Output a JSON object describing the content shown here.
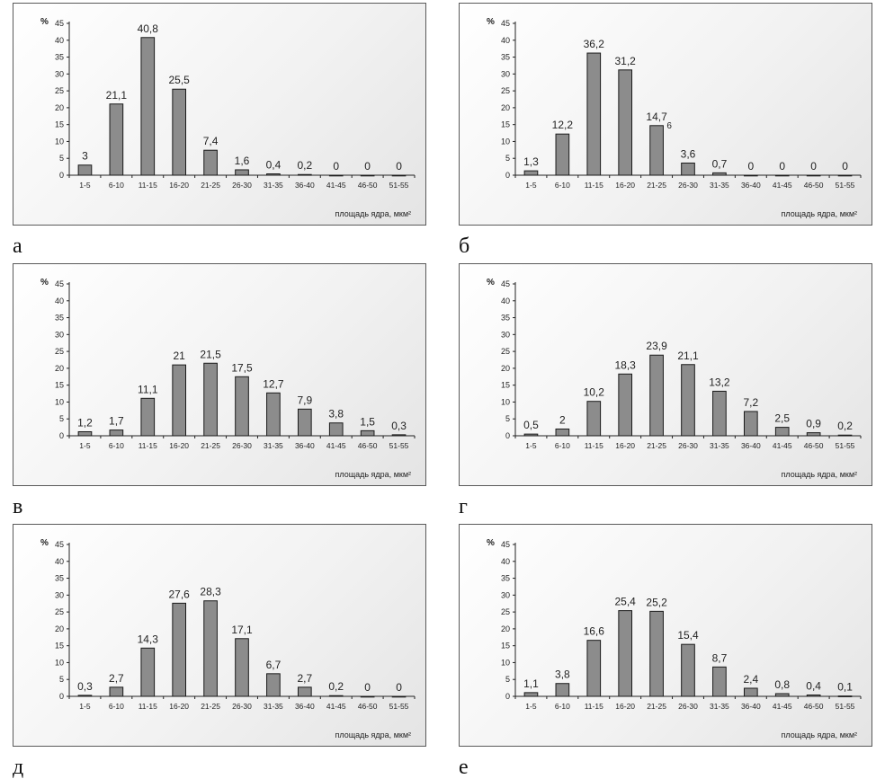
{
  "chart_data": [
    {
      "type": "bar",
      "panel_label": "а",
      "categories": [
        "1-5",
        "6-10",
        "11-15",
        "16-20",
        "21-25",
        "26-30",
        "31-35",
        "36-40",
        "41-45",
        "46-50",
        "51-55"
      ],
      "values": [
        3,
        21.1,
        40.8,
        25.5,
        7.4,
        1.6,
        0.4,
        0.2,
        0,
        0,
        0
      ],
      "value_labels": [
        "3",
        "21,1",
        "40,8",
        "25,5",
        "7,4",
        "1,6",
        "0,4",
        "0,2",
        "0",
        "0",
        "0"
      ],
      "extra_labels": [],
      "xlabel": "площадь ядра, мкм²",
      "ylabel": "%",
      "yticks": [
        "0",
        "5",
        "10",
        "15",
        "20",
        "25",
        "30",
        "35",
        "40",
        "45"
      ],
      "ylim": [
        0,
        45
      ]
    },
    {
      "type": "bar",
      "panel_label": "б",
      "categories": [
        "1-5",
        "6-10",
        "11-15",
        "16-20",
        "21-25",
        "26-30",
        "31-35",
        "36-40",
        "41-45",
        "46-50",
        "51-55"
      ],
      "values": [
        1.3,
        12.2,
        36.2,
        31.2,
        14.7,
        3.6,
        0.7,
        0,
        0,
        0,
        0
      ],
      "value_labels": [
        "1,3",
        "12,2",
        "36,2",
        "31,2",
        "14,7",
        "3,6",
        "0,7",
        "0",
        "0",
        "0",
        "0"
      ],
      "extra_labels": [
        {
          "category_index": 4,
          "text": "6"
        }
      ],
      "xlabel": "площадь ядра, мкм²",
      "ylabel": "%",
      "yticks": [
        "0",
        "5",
        "10",
        "15",
        "20",
        "25",
        "30",
        "35",
        "40",
        "45"
      ],
      "ylim": [
        0,
        45
      ]
    },
    {
      "type": "bar",
      "panel_label": "в",
      "categories": [
        "1-5",
        "6-10",
        "11-15",
        "16-20",
        "21-25",
        "26-30",
        "31-35",
        "36-40",
        "41-45",
        "46-50",
        "51-55"
      ],
      "values": [
        1.2,
        1.7,
        11.1,
        21,
        21.5,
        17.5,
        12.7,
        7.9,
        3.8,
        1.5,
        0.3
      ],
      "value_labels": [
        "1,2",
        "1,7",
        "11,1",
        "21",
        "21,5",
        "17,5",
        "12,7",
        "7,9",
        "3,8",
        "1,5",
        "0,3"
      ],
      "extra_labels": [],
      "xlabel": "площадь ядра, мкм²",
      "ylabel": "%",
      "yticks": [
        "0",
        "5",
        "10",
        "15",
        "20",
        "25",
        "30",
        "35",
        "40",
        "45"
      ],
      "ylim": [
        0,
        45
      ]
    },
    {
      "type": "bar",
      "panel_label": "г",
      "categories": [
        "1-5",
        "6-10",
        "11-15",
        "16-20",
        "21-25",
        "26-30",
        "31-35",
        "36-40",
        "41-45",
        "46-50",
        "51-55"
      ],
      "values": [
        0.5,
        2,
        10.2,
        18.3,
        23.9,
        21.1,
        13.2,
        7.2,
        2.5,
        0.9,
        0.2
      ],
      "value_labels": [
        "0,5",
        "2",
        "10,2",
        "18,3",
        "23,9",
        "21,1",
        "13,2",
        "7,2",
        "2,5",
        "0,9",
        "0,2"
      ],
      "extra_labels": [],
      "xlabel": "площадь ядра, мкм²",
      "ylabel": "%",
      "yticks": [
        "0",
        "5",
        "10",
        "15",
        "20",
        "25",
        "30",
        "35",
        "40",
        "45"
      ],
      "ylim": [
        0,
        45
      ]
    },
    {
      "type": "bar",
      "panel_label": "д",
      "categories": [
        "1-5",
        "6-10",
        "11-15",
        "16-20",
        "21-25",
        "26-30",
        "31-35",
        "36-40",
        "41-45",
        "46-50",
        "51-55"
      ],
      "values": [
        0.3,
        2.7,
        14.3,
        27.6,
        28.3,
        17.1,
        6.7,
        2.7,
        0.2,
        0,
        0
      ],
      "value_labels": [
        "0,3",
        "2,7",
        "14,3",
        "27,6",
        "28,3",
        "17,1",
        "6,7",
        "2,7",
        "0,2",
        "0",
        "0"
      ],
      "extra_labels": [],
      "xlabel": "площадь ядра, мкм²",
      "ylabel": "%",
      "yticks": [
        "0",
        "5",
        "10",
        "15",
        "20",
        "25",
        "30",
        "35",
        "40",
        "45"
      ],
      "ylim": [
        0,
        45
      ]
    },
    {
      "type": "bar",
      "panel_label": "е",
      "categories": [
        "1-5",
        "6-10",
        "11-15",
        "16-20",
        "21-25",
        "26-30",
        "31-35",
        "36-40",
        "41-45",
        "46-50",
        "51-55"
      ],
      "values": [
        1.1,
        3.8,
        16.6,
        25.4,
        25.2,
        15.4,
        8.7,
        2.4,
        0.8,
        0.4,
        0.1
      ],
      "value_labels": [
        "1,1",
        "3,8",
        "16,6",
        "25,4",
        "25,2",
        "15,4",
        "8,7",
        "2,4",
        "0,8",
        "0,4",
        "0,1"
      ],
      "extra_labels": [],
      "xlabel": "площадь ядра, мкм²",
      "ylabel": "%",
      "yticks": [
        "0",
        "5",
        "10",
        "15",
        "20",
        "25",
        "30",
        "35",
        "40",
        "45"
      ],
      "ylim": [
        0,
        45
      ]
    }
  ],
  "colors": {
    "bar_fill": "#8c8c8c",
    "bar_stroke": "#1a1a1a",
    "axis": "#222222",
    "text": "#222222"
  }
}
